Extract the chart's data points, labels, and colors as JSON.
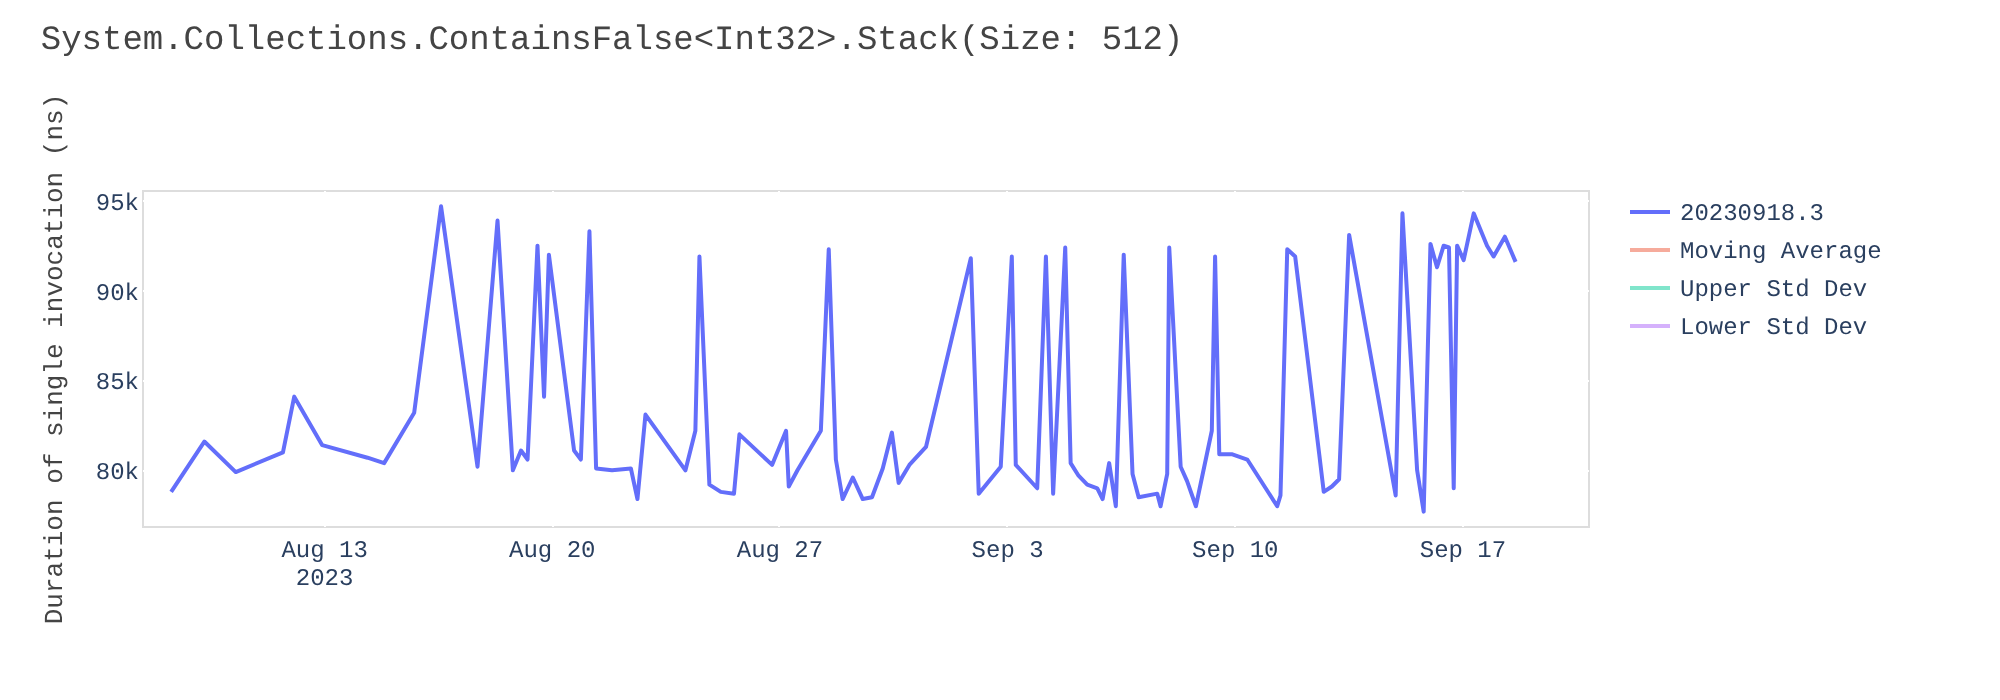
{
  "chart_data": {
    "type": "line",
    "title": "System.Collections.ContainsFalse<Int32>.Stack(Size: 512)",
    "ylabel": "Duration of single invocation (ns)",
    "x": [
      "2023-08-08T07:30",
      "2023-08-09T08:00",
      "2023-08-10T07:10",
      "2023-08-11T18:00",
      "2023-08-12T02:20",
      "2023-08-12T23:00",
      "2023-08-14T08:25",
      "2023-08-14T20:40",
      "2023-08-15T18:50",
      "2023-08-16T14:40",
      "2023-08-17T17:35",
      "2023-08-18T08:20",
      "2023-08-18T19:40",
      "2023-08-19T01:40",
      "2023-08-19T06:30",
      "2023-08-19T13:50",
      "2023-08-19T18:40",
      "2023-08-19T22:15",
      "2023-08-20T16:50",
      "2023-08-20T21:50",
      "2023-08-21T04:10",
      "2023-08-21T09:05",
      "2023-08-21T20:50",
      "2023-08-22T10:45",
      "2023-08-22T15:35",
      "2023-08-22T21:30",
      "2023-08-24T03:00",
      "2023-08-24T10:20",
      "2023-08-24T13:20",
      "2023-08-24T20:40",
      "2023-08-25T05:05",
      "2023-08-25T14:50",
      "2023-08-25T18:50",
      "2023-08-26T18:55",
      "2023-08-27T05:15",
      "2023-08-27T07:15",
      "2023-08-27T13:40",
      "2023-08-28T06:55",
      "2023-08-28T12:45",
      "2023-08-28T18:00",
      "2023-08-28T23:00",
      "2023-08-29T06:30",
      "2023-08-29T13:50",
      "2023-08-29T20:40",
      "2023-08-30T04:35",
      "2023-08-30T11:20",
      "2023-08-30T16:20",
      "2023-08-31T00:15",
      "2023-08-31T12:30",
      "2023-09-01T21:35",
      "2023-09-02T03:25",
      "2023-09-02T19:40",
      "2023-09-03T03:50",
      "2023-09-03T06:45",
      "2023-09-03T22:35",
      "2023-09-04T05:00",
      "2023-09-04T10:20",
      "2023-09-04T19:15",
      "2023-09-04T23:15",
      "2023-09-05T05:05",
      "2023-09-05T11:30",
      "2023-09-05T18:55",
      "2023-09-05T22:50",
      "2023-09-06T03:40",
      "2023-09-06T08:35",
      "2023-09-06T14:25",
      "2023-09-06T20:55",
      "2023-09-07T01:25",
      "2023-09-07T15:10",
      "2023-09-07T17:35",
      "2023-09-07T22:30",
      "2023-09-08T00:00",
      "2023-09-08T08:25",
      "2023-09-08T13:10",
      "2023-09-08T19:40",
      "2023-09-09T07:25",
      "2023-09-09T09:50",
      "2023-09-09T12:55",
      "2023-09-09T22:05",
      "2023-09-10T09:35",
      "2023-09-11T07:40",
      "2023-09-11T10:05",
      "2023-09-11T15:05",
      "2023-09-11T20:55",
      "2023-09-12T14:40",
      "2023-09-12T18:00",
      "2023-09-13T00:00",
      "2023-09-13T05:20",
      "2023-09-13T12:45",
      "2023-09-14T23:05",
      "2023-09-15T04:05",
      "2023-09-15T14:55",
      "2023-09-15T19:45",
      "2023-09-16T00:45",
      "2023-09-16T05:35",
      "2023-09-16T10:30",
      "2023-09-16T14:25",
      "2023-09-16T17:55",
      "2023-09-16T20:25",
      "2023-09-17T01:15",
      "2023-09-17T08:40",
      "2023-09-17T18:30",
      "2023-09-17T23:20",
      "2023-09-18T07:40",
      "2023-09-18T15:35"
    ],
    "series": [
      {
        "name": "20230918.3",
        "color": "#636efa",
        "values": [
          78800,
          81600,
          79900,
          81000,
          84100,
          81400,
          80700,
          80400,
          83200,
          94700,
          80200,
          93900,
          80000,
          81100,
          80600,
          92500,
          84100,
          92000,
          81100,
          80600,
          93300,
          80100,
          80000,
          80100,
          78400,
          83100,
          80000,
          82200,
          91900,
          79200,
          78800,
          78700,
          82000,
          80300,
          82200,
          79100,
          80000,
          82200,
          92300,
          80600,
          78400,
          79600,
          78400,
          78500,
          80100,
          82100,
          79300,
          80300,
          81300,
          91800,
          78700,
          80200,
          91900,
          80300,
          79000,
          91900,
          78700,
          92400,
          80400,
          79700,
          79200,
          79000,
          78400,
          80400,
          78000,
          92000,
          79800,
          78500,
          78700,
          78000,
          79800,
          92400,
          80200,
          79400,
          78000,
          82200,
          91900,
          80900,
          80900,
          80600,
          78000,
          78600,
          92300,
          91900,
          80900,
          78800,
          79100,
          79500,
          93100,
          78600,
          94300,
          80000,
          77700,
          92600,
          91300,
          92500,
          92400,
          79000,
          92500,
          91700,
          94300,
          92500,
          91900,
          93000,
          91600
        ]
      },
      {
        "name": "Moving Average",
        "color": "#f6ab9c",
        "values": [
          null,
          null,
          null,
          null,
          null,
          null,
          null,
          null,
          null,
          null,
          null,
          null,
          null,
          null,
          null,
          null,
          null,
          null,
          null,
          null,
          null,
          null,
          null,
          null,
          null,
          null,
          null,
          null,
          null,
          null,
          null,
          null,
          null,
          null,
          null,
          null,
          null,
          null,
          null,
          null,
          null,
          null,
          null,
          null,
          null,
          null,
          null,
          null,
          null,
          null,
          null,
          null,
          null,
          null,
          null,
          null,
          null,
          null,
          null,
          null,
          null,
          null,
          null,
          null,
          null,
          null,
          null,
          null,
          null,
          null,
          null,
          null,
          null,
          null,
          null,
          null,
          null,
          null,
          null,
          null,
          null,
          null,
          null,
          null,
          null,
          null,
          null,
          null,
          null,
          null,
          null,
          null,
          null,
          null,
          null,
          null,
          null,
          null,
          null,
          null,
          null,
          null,
          null,
          null,
          null
        ]
      },
      {
        "name": "Upper Std Dev",
        "color": "#80e5cb",
        "values": [
          null,
          null,
          null,
          null,
          null,
          null,
          null,
          null,
          null,
          null,
          null,
          null,
          null,
          null,
          null,
          null,
          null,
          null,
          null,
          null,
          null,
          null,
          null,
          null,
          null,
          null,
          null,
          null,
          null,
          null,
          null,
          null,
          null,
          null,
          null,
          null,
          null,
          null,
          null,
          null,
          null,
          null,
          null,
          null,
          null,
          null,
          null,
          null,
          null,
          null,
          null,
          null,
          null,
          null,
          null,
          null,
          null,
          null,
          null,
          null,
          null,
          null,
          null,
          null,
          null,
          null,
          null,
          null,
          null,
          null,
          null,
          null,
          null,
          null,
          null,
          null,
          null,
          null,
          null,
          null,
          null,
          null,
          null,
          null,
          null,
          null,
          null,
          null,
          null,
          null,
          null,
          null,
          null,
          null,
          null,
          null,
          null,
          null,
          null,
          null,
          null,
          null,
          null,
          null,
          null
        ]
      },
      {
        "name": "Lower Std Dev",
        "color": "#d5b1fc",
        "values": [
          null,
          null,
          null,
          null,
          null,
          null,
          null,
          null,
          null,
          null,
          null,
          null,
          null,
          null,
          null,
          null,
          null,
          null,
          null,
          null,
          null,
          null,
          null,
          null,
          null,
          null,
          null,
          null,
          null,
          null,
          null,
          null,
          null,
          null,
          null,
          null,
          null,
          null,
          null,
          null,
          null,
          null,
          null,
          null,
          null,
          null,
          null,
          null,
          null,
          null,
          null,
          null,
          null,
          null,
          null,
          null,
          null,
          null,
          null,
          null,
          null,
          null,
          null,
          null,
          null,
          null,
          null,
          null,
          null,
          null,
          null,
          null,
          null,
          null,
          null,
          null,
          null,
          null,
          null,
          null,
          null,
          null,
          null,
          null,
          null,
          null,
          null,
          null,
          null,
          null,
          null,
          null,
          null,
          null,
          null,
          null,
          null,
          null,
          null,
          null,
          null,
          null,
          null,
          null,
          null
        ]
      }
    ],
    "xlim": [
      "2023-08-07T10:00",
      "2023-09-20T21:00"
    ],
    "xticks": [
      {
        "value": "2023-08-13",
        "label": "Aug 13\n2023"
      },
      {
        "value": "2023-08-20",
        "label": "Aug 20"
      },
      {
        "value": "2023-08-27",
        "label": "Aug 27"
      },
      {
        "value": "2023-09-03",
        "label": "Sep 3"
      },
      {
        "value": "2023-09-10",
        "label": "Sep 10"
      },
      {
        "value": "2023-09-17",
        "label": "Sep 17"
      }
    ],
    "ylim": [
      76900,
      95600
    ],
    "yticks": [
      {
        "value": 80000,
        "label": "80k"
      },
      {
        "value": 85000,
        "label": "85k"
      },
      {
        "value": 90000,
        "label": "90k"
      },
      {
        "value": 95000,
        "label": "95k"
      }
    ],
    "grid": true,
    "legend": "top right",
    "line_style": "solid"
  }
}
